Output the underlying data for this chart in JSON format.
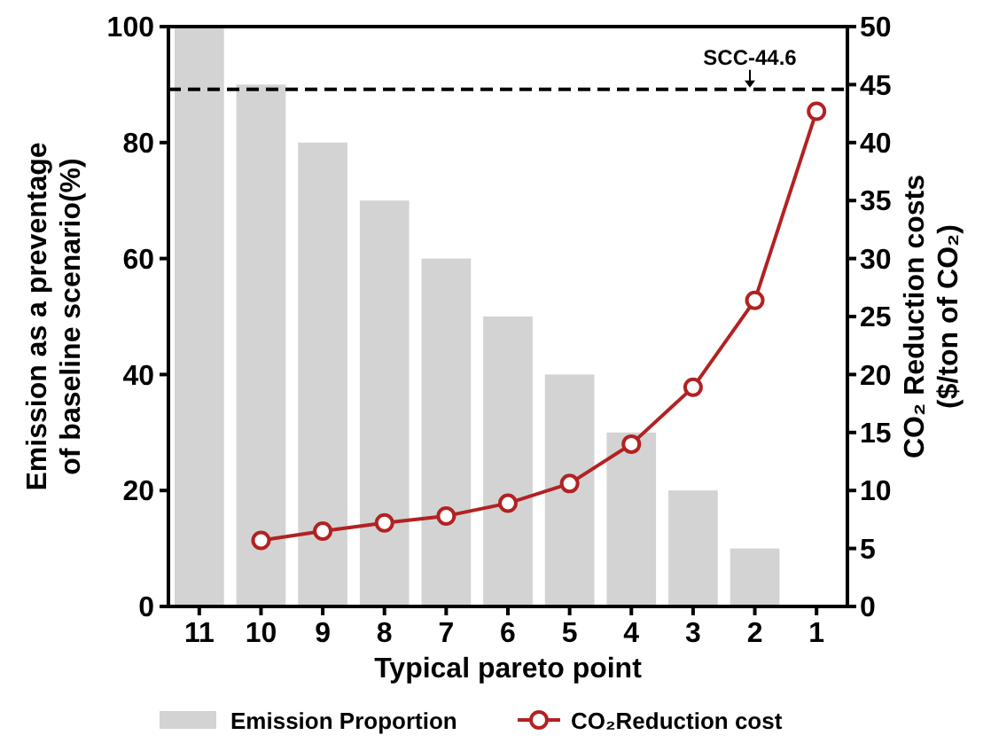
{
  "chart_data": {
    "type": "bar",
    "xlabel": "Typical pareto point",
    "ylabel": "Emission as a preventage of baseline scenario(%)",
    "y2label": "CO₂ Reduction costs ($/ton of CO₂)",
    "categories": [
      "11",
      "10",
      "9",
      "8",
      "7",
      "6",
      "5",
      "4",
      "3",
      "2",
      "1"
    ],
    "series": [
      {
        "name": "Emission Proportion",
        "color": "#d3d3d3",
        "values": [
          100,
          90,
          80,
          70,
          60,
          50,
          40,
          30,
          20,
          10,
          null
        ]
      },
      {
        "name": "CO₂Reduction cost",
        "type": "line",
        "axis": "y2",
        "color": "#b22222",
        "marker": "circle",
        "values": [
          null,
          5.7,
          6.5,
          7.2,
          7.8,
          8.9,
          10.6,
          14.0,
          18.9,
          26.4,
          42.7
        ]
      }
    ],
    "ylim": [
      0,
      100
    ],
    "yticks": [
      0,
      20,
      40,
      60,
      80,
      100
    ],
    "y2lim": [
      0,
      50
    ],
    "y2ticks": [
      0,
      5,
      10,
      15,
      20,
      25,
      30,
      35,
      40,
      45,
      50
    ],
    "ref_lines": [
      {
        "axis": "y2",
        "value": 44.6,
        "label": "SCC-44.6",
        "color": "#000000",
        "line_style": "dashed"
      }
    ],
    "legend": "bottom",
    "grid": false
  }
}
